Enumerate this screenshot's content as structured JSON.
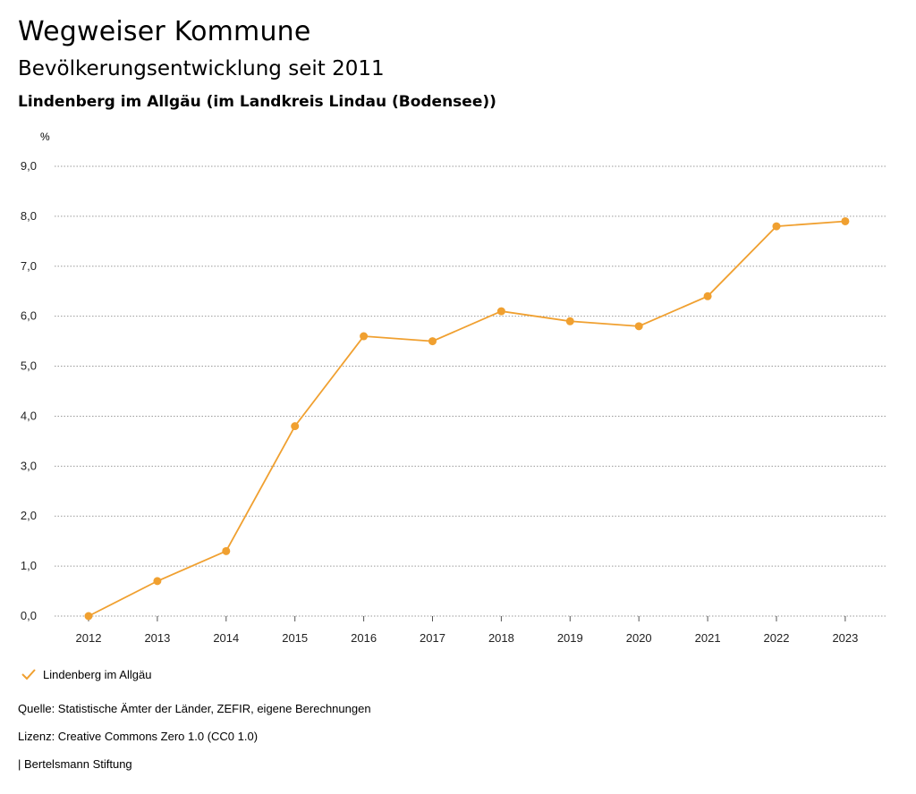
{
  "header": {
    "title": "Wegweiser Kommune",
    "subtitle": "Bevölkerungsentwicklung seit 2011",
    "region": "Lindenberg im Allgäu (im Landkreis Lindau (Bodensee))"
  },
  "chart_data": {
    "type": "line",
    "ylabel": "%",
    "x": [
      "2012",
      "2013",
      "2014",
      "2015",
      "2016",
      "2017",
      "2018",
      "2019",
      "2020",
      "2021",
      "2022",
      "2023"
    ],
    "series": [
      {
        "name": "Lindenberg im Allgäu",
        "color": "#f0a030",
        "values": [
          0.0,
          0.7,
          1.3,
          3.8,
          5.6,
          5.5,
          6.1,
          5.9,
          5.8,
          6.4,
          7.8,
          7.9
        ]
      }
    ],
    "ylim": [
      0,
      9
    ],
    "yticks": [
      "0,0",
      "1,0",
      "2,0",
      "3,0",
      "4,0",
      "5,0",
      "6,0",
      "7,0",
      "8,0",
      "9,0"
    ],
    "grid": true,
    "legend_position": "bottom-left"
  },
  "legend": {
    "label": "Lindenberg im Allgäu",
    "icon": "check-icon"
  },
  "footer": {
    "source": "Quelle: Statistische Ämter der Länder, ZEFIR, eigene Berechnungen",
    "license": "Lizenz: Creative Commons Zero 1.0 (CC0 1.0)",
    "publisher": "| Bertelsmann Stiftung"
  }
}
